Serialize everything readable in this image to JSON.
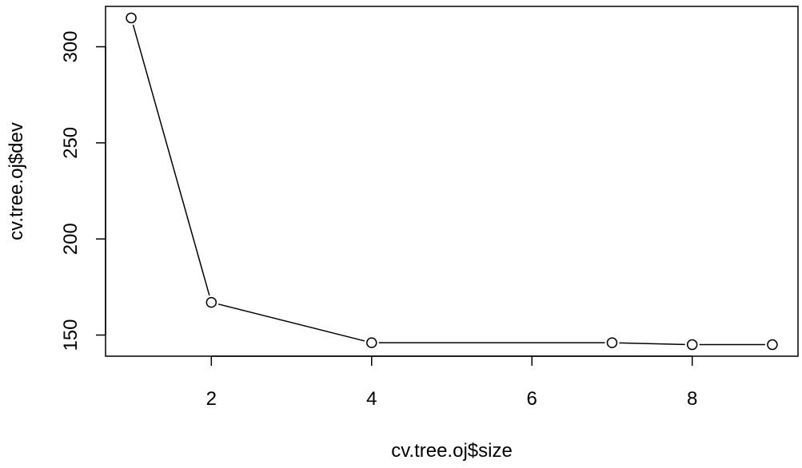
{
  "chart_data": {
    "type": "line",
    "xlabel": "cv.tree.oj$size",
    "ylabel": "cv.tree.oj$dev",
    "x": [
      1,
      2,
      4,
      7,
      8,
      9
    ],
    "y": [
      315,
      167,
      146,
      146,
      145,
      145
    ],
    "xlim": [
      0.68,
      9.32
    ],
    "ylim": [
      139,
      321
    ],
    "xticks": [
      2,
      4,
      6,
      8
    ],
    "yticks": [
      150,
      200,
      250,
      300
    ],
    "xtick_labels": [
      "2",
      "4",
      "6",
      "8"
    ],
    "ytick_labels": [
      "150",
      "200",
      "250",
      "300"
    ],
    "grid": false,
    "marker": "open-circle"
  }
}
